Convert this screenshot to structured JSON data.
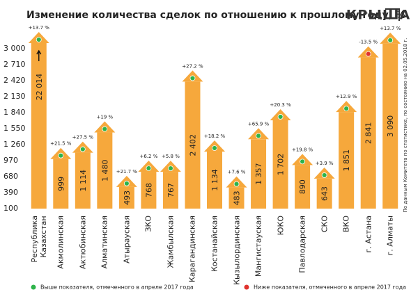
{
  "chart_data": {
    "type": "house-bar",
    "title": "Изменение количества сделок по отношению к прошлому году, %",
    "logo": "КРЫША",
    "source_note": "По данным Комитета по статистике, по состоянию на 02.05.2018 г.",
    "categories": [
      "Республика\nКазахстан",
      "Акмолинская",
      "Актюбинская",
      "Алматинская",
      "Атырауская",
      "ЗКО",
      "Жамбылская",
      "Карагандинская",
      "Костанайская",
      "Кызылординская",
      "Мангистауская",
      "ЮКО",
      "Павлодарская",
      "СКО",
      "ВКО",
      "г. Астана",
      "г. Алматы"
    ],
    "values": [
      22014,
      999,
      1114,
      1480,
      493,
      768,
      767,
      2402,
      1134,
      483,
      1357,
      1702,
      890,
      643,
      1851,
      2841,
      3090
    ],
    "value_labels": [
      "22 014",
      "999",
      "1 114",
      "1 480",
      "493",
      "768",
      "767",
      "2 402",
      "1 134",
      "483",
      "1 357",
      "1 702",
      "890",
      "643",
      "1 851",
      "2 841",
      "3 090"
    ],
    "change_labels": [
      "+13.7 %",
      "+21.5 %",
      "+27.5 %",
      "+19 %",
      "+21.7 %",
      "+6.2 %",
      "+5.8 %",
      "+27.2 %",
      "+18.2 %",
      "+7.6 %",
      "+65.9 %",
      "+20.3 %",
      "+19.8 %",
      "+3.9 %",
      "+12.9 %",
      "-13.5 %",
      "+13.7 %"
    ],
    "marker_colors": [
      "#2db34a",
      "#2db34a",
      "#2db34a",
      "#2db34a",
      "#2db34a",
      "#2db34a",
      "#2db34a",
      "#2db34a",
      "#2db34a",
      "#2db34a",
      "#2db34a",
      "#2db34a",
      "#2db34a",
      "#2db34a",
      "#2db34a",
      "#e0322d",
      "#2db34a"
    ],
    "color": "#f6a83c",
    "legend": [
      {
        "label": "Выше показателя, отмеченного в апреле 2017 года",
        "color": "#2db34a"
      },
      {
        "label": "Ниже показателя, отмеченного в апреле 2017 года",
        "color": "#e0322d"
      }
    ],
    "ylim": [
      100,
      3000
    ],
    "yticks": [
      100,
      390,
      680,
      970,
      {
        "value": 1260,
        "label": "1 260"
      },
      {
        "value": 1550,
        "label": "1 550"
      },
      {
        "value": 1840,
        "label": "1 840"
      },
      {
        "value": 2130,
        "label": "2 130"
      },
      {
        "value": 2420,
        "label": "2 420"
      },
      {
        "value": 2710,
        "label": "2 710"
      },
      {
        "value": 3000,
        "label": "3 000"
      }
    ]
  }
}
